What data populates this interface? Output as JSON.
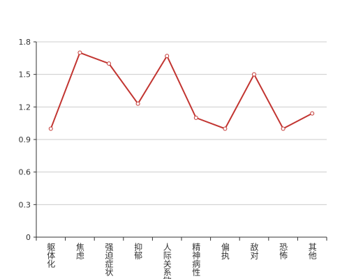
{
  "chart_data": {
    "type": "line",
    "categories": [
      "躯体化",
      "焦虑",
      "强迫症状",
      "抑郁",
      "人际关系敏感",
      "精神病性",
      "偏执",
      "敌对",
      "恐怖",
      "其他"
    ],
    "values": [
      1.0,
      1.7,
      1.6,
      1.23,
      1.67,
      1.1,
      1.0,
      1.5,
      1.0,
      1.14
    ],
    "color": "#c23531",
    "ylim": [
      0,
      1.8
    ],
    "yticks": [
      0,
      0.3,
      0.6,
      0.9,
      1.2,
      1.5,
      1.8
    ],
    "grid": true
  }
}
